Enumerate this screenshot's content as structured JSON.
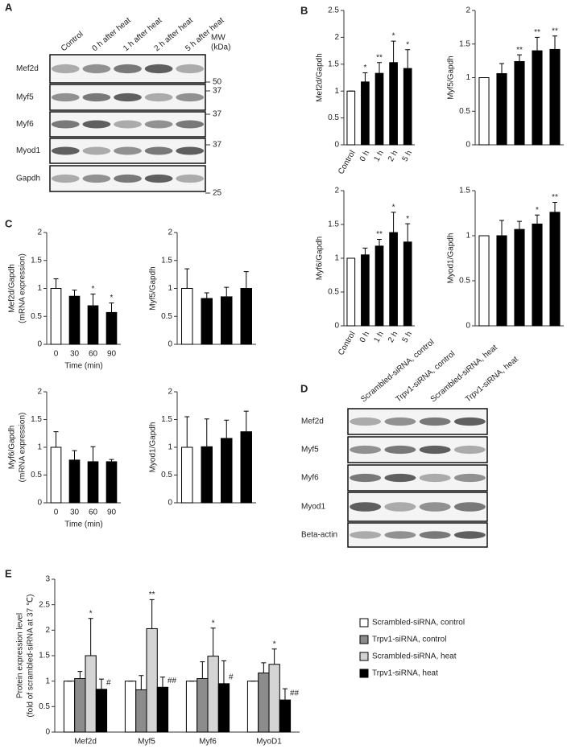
{
  "panel_labels": [
    "A",
    "B",
    "C",
    "D",
    "E"
  ],
  "blot_a": {
    "lanes": [
      "Control",
      "0 h after heat",
      "1 h after heat",
      "2 h after heat",
      "5 h after heat"
    ],
    "mw_label": [
      "MW",
      "(kDa)"
    ],
    "rows": [
      "Mef2d",
      "Myf5",
      "Myf6",
      "Myod1",
      "Gapdh"
    ],
    "markers": [
      50,
      37,
      37,
      37,
      25
    ]
  },
  "blot_d": {
    "lanes": [
      "Scrambled-siRNA, control",
      "Trpv1-siRNA, control",
      "Scrambled-siRNA, heat",
      "Trpv1-siRNA, heat"
    ],
    "rows": [
      "Mef2d",
      "Myf5",
      "Myf6",
      "Myod1",
      "Beta-actin"
    ]
  },
  "chart_data": [
    {
      "type": "bar",
      "ylabel": [
        "Mef2d/Gapdh"
      ],
      "categories": [
        "Control",
        "0 h",
        "1 h",
        "2 h",
        "5 h"
      ],
      "values": [
        1,
        1.17,
        1.33,
        1.53,
        1.42
      ],
      "errors": [
        0,
        0.17,
        0.2,
        0.4,
        0.35
      ],
      "annotations": [
        null,
        "*",
        "**",
        "*",
        "*"
      ],
      "colors": [
        "#ffffff",
        "#000000",
        "#000000",
        "#000000",
        "#000000"
      ],
      "ylim": [
        0,
        2.5
      ],
      "yticks": [
        0,
        0.5,
        1,
        1.5,
        2,
        2.5
      ]
    },
    {
      "type": "bar",
      "ylabel": [
        "Myf5/Gapdh"
      ],
      "categories": [
        null,
        null,
        null,
        null,
        null
      ],
      "values": [
        1,
        1.06,
        1.24,
        1.4,
        1.42
      ],
      "errors": [
        0,
        0.15,
        0.1,
        0.2,
        0.2
      ],
      "annotations": [
        null,
        null,
        "**",
        "**",
        "**"
      ],
      "colors": [
        "#ffffff",
        "#000000",
        "#000000",
        "#000000",
        "#000000"
      ],
      "ylim": [
        0,
        2
      ],
      "yticks": [
        0,
        0.5,
        1,
        1.5,
        2
      ]
    },
    {
      "type": "bar",
      "ylabel": [
        "Myf6/Gapdh"
      ],
      "categories": [
        "Control",
        "0 h",
        "1 h",
        "2 h",
        "5 h"
      ],
      "values": [
        1,
        1.05,
        1.18,
        1.38,
        1.24
      ],
      "errors": [
        0,
        0.1,
        0.1,
        0.3,
        0.27
      ],
      "annotations": [
        null,
        null,
        "**",
        "*",
        "*"
      ],
      "colors": [
        "#ffffff",
        "#000000",
        "#000000",
        "#000000",
        "#000000"
      ],
      "ylim": [
        0,
        2
      ],
      "yticks": [
        0,
        0.5,
        1,
        1.5,
        2
      ]
    },
    {
      "type": "bar",
      "ylabel": [
        "Myod1/Gapdh"
      ],
      "categories": [
        null,
        null,
        null,
        null,
        null
      ],
      "values": [
        1,
        1,
        1.07,
        1.13,
        1.26
      ],
      "errors": [
        0,
        0.17,
        0.09,
        0.1,
        0.11
      ],
      "annotations": [
        null,
        null,
        null,
        "*",
        "**"
      ],
      "colors": [
        "#ffffff",
        "#000000",
        "#000000",
        "#000000",
        "#000000"
      ],
      "ylim": [
        0,
        1.5
      ],
      "yticks": [
        0,
        0.5,
        1,
        1.5
      ]
    },
    {
      "type": "bar",
      "ylabel": [
        "Mef2d/Gapdh",
        "(mRNA expression)"
      ],
      "xlabel": "Time (min)",
      "categories": [
        "0",
        "30",
        "60",
        "90"
      ],
      "values": [
        1,
        0.86,
        0.69,
        0.57
      ],
      "errors": [
        0.17,
        0.11,
        0.21,
        0.17
      ],
      "annotations": [
        null,
        null,
        "*",
        "*"
      ],
      "colors": [
        "#ffffff",
        "#000000",
        "#000000",
        "#000000"
      ],
      "ylim": [
        0,
        2
      ],
      "yticks": [
        0,
        0.5,
        1,
        1.5,
        2
      ]
    },
    {
      "type": "bar",
      "ylabel": [
        "Myf5/Gapdh"
      ],
      "categories": [
        null,
        null,
        null,
        null
      ],
      "values": [
        1,
        0.82,
        0.85,
        1
      ],
      "errors": [
        0.35,
        0.1,
        0.17,
        0.3
      ],
      "colors": [
        "#ffffff",
        "#000000",
        "#000000",
        "#000000"
      ],
      "ylim": [
        0,
        2
      ],
      "yticks": [
        0,
        0.5,
        1,
        1.5,
        2
      ]
    },
    {
      "type": "bar",
      "ylabel": [
        "Myf6/Gapdh",
        "(mRNA expression)"
      ],
      "xlabel": "Time (min)",
      "categories": [
        "0",
        "30",
        "60",
        "90"
      ],
      "values": [
        1,
        0.77,
        0.74,
        0.74
      ],
      "errors": [
        0.28,
        0.17,
        0.27,
        0.04
      ],
      "colors": [
        "#ffffff",
        "#000000",
        "#000000",
        "#000000"
      ],
      "ylim": [
        0,
        2
      ],
      "yticks": [
        0,
        0.5,
        1,
        1.5,
        2
      ]
    },
    {
      "type": "bar",
      "ylabel": [
        "Myod1/Gapdh"
      ],
      "categories": [
        null,
        null,
        null,
        null
      ],
      "values": [
        1,
        1.01,
        1.16,
        1.28
      ],
      "errors": [
        0.55,
        0.5,
        0.33,
        0.37
      ],
      "colors": [
        "#ffffff",
        "#000000",
        "#000000",
        "#000000"
      ],
      "ylim": [
        0,
        2
      ],
      "yticks": [
        0,
        0.5,
        1,
        1.5,
        2
      ]
    },
    {
      "type": "grouped_bar",
      "ylabel": [
        "Protein expression level",
        "(fold of scrambled-siRNA at 37 ℃)"
      ],
      "categories": [
        "Mef2d",
        "Myf5",
        "Myf6",
        "MyoD1"
      ],
      "series": [
        {
          "name": "Scrambled-siRNA, control",
          "color": "#ffffff",
          "values": [
            1,
            1,
            1,
            1
          ],
          "errors": [
            0,
            0,
            0,
            0
          ]
        },
        {
          "name": "Trpv1-siRNA, control",
          "color": "#8c8c8c",
          "values": [
            1.05,
            0.83,
            1.05,
            1.16
          ],
          "errors": [
            0.14,
            0.28,
            0.33,
            0.2
          ]
        },
        {
          "name": "Scrambled-siRNA, heat",
          "color": "#d4d4d4",
          "values": [
            1.5,
            2.03,
            1.49,
            1.33
          ],
          "errors": [
            0.73,
            0.57,
            0.55,
            0.3
          ],
          "annotations": [
            "*",
            "**",
            "*",
            "*"
          ]
        },
        {
          "name": "Trpv1-siRNA, heat",
          "color": "#000000",
          "values": [
            0.84,
            0.88,
            0.95,
            0.63
          ],
          "errors": [
            0.2,
            0.2,
            0.45,
            0.22
          ],
          "annotations": [
            "#",
            "##",
            "#",
            "##"
          ]
        }
      ],
      "ylim": [
        0,
        3
      ],
      "yticks": [
        0,
        0.5,
        1,
        1.5,
        2,
        2.5,
        3
      ]
    }
  ]
}
